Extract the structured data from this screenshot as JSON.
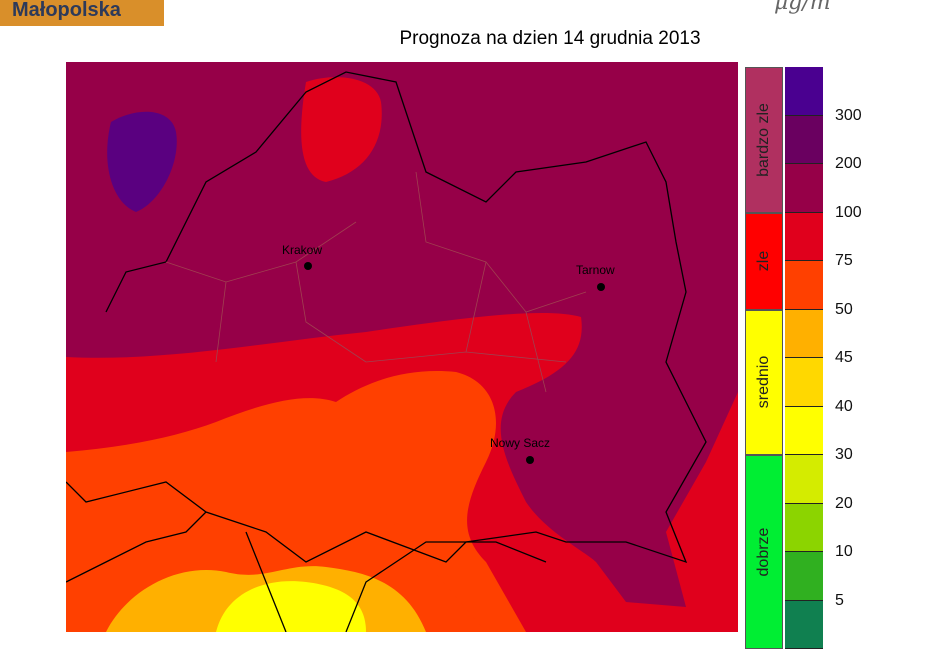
{
  "logo": "Małopolska",
  "unit": "µg/m",
  "title": "Prognoza na dzien  14 grudnia 2013",
  "legend": {
    "categories": [
      {
        "label": "bardzo zle",
        "color": "#b03060"
      },
      {
        "label": "zle",
        "color": "#ff0000"
      },
      {
        "label": "srednio",
        "color": "#ffff00"
      },
      {
        "label": "dobrze",
        "color": "#00ee33"
      }
    ],
    "bin_colors": [
      "#4a0090",
      "#6a0060",
      "#960048",
      "#e0001c",
      "#ff4000",
      "#ffb000",
      "#ffd800",
      "#ffff00",
      "#d4ec00",
      "#8cd400",
      "#30b020",
      "#108050"
    ],
    "ticks": [
      "300",
      "200",
      "100",
      "75",
      "50",
      "45",
      "40",
      "30",
      "20",
      "10",
      "5"
    ]
  },
  "cities": [
    {
      "name": "Krakow"
    },
    {
      "name": "Tarnow"
    },
    {
      "name": "Nowy Sacz"
    }
  ]
}
